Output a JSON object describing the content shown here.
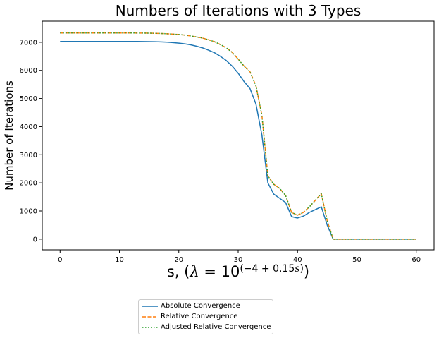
{
  "chart_data": {
    "type": "line",
    "title": "Numbers of Iterations with 3 Types",
    "xlabel": "s, (λ = 10^(−4 + 0.15s))",
    "xlabel_parts": {
      "prefix": "s, (",
      "lambda": "λ",
      "eq": " = 10",
      "exp": "(−4 + 0.15",
      "exp_s": "s",
      "exp_close": ")",
      "suffix": ")"
    },
    "ylabel": "Number of Iterations",
    "xlim": [
      -3,
      63
    ],
    "ylim": [
      -380,
      7750
    ],
    "xticks": [
      0,
      10,
      20,
      30,
      40,
      50,
      60
    ],
    "yticks": [
      0,
      1000,
      2000,
      3000,
      4000,
      5000,
      6000,
      7000
    ],
    "grid": false,
    "legend_placement": "below",
    "x": [
      0,
      1,
      2,
      3,
      4,
      5,
      6,
      7,
      8,
      9,
      10,
      11,
      12,
      13,
      14,
      15,
      16,
      17,
      18,
      19,
      20,
      21,
      22,
      23,
      24,
      25,
      26,
      27,
      28,
      29,
      30,
      31,
      32,
      33,
      34,
      35,
      36,
      37,
      38,
      39,
      40,
      41,
      42,
      43,
      44,
      45,
      46,
      47,
      48,
      49,
      50,
      51,
      52,
      53,
      54,
      55,
      56,
      57,
      58,
      59,
      60
    ],
    "series": [
      {
        "name": "Absolute Convergence",
        "color": "#1f77b4",
        "style": "solid",
        "values": [
          7030,
          7030,
          7030,
          7030,
          7030,
          7030,
          7030,
          7030,
          7030,
          7030,
          7030,
          7030,
          7029,
          7028,
          7026,
          7023,
          7018,
          7012,
          7002,
          6988,
          6970,
          6945,
          6910,
          6860,
          6800,
          6720,
          6630,
          6500,
          6350,
          6150,
          5900,
          5600,
          5350,
          4800,
          3700,
          2000,
          1600,
          1450,
          1300,
          800,
          750,
          820,
          950,
          1050,
          1150,
          500,
          0,
          0,
          0,
          0,
          0,
          0,
          0,
          0,
          0,
          0,
          0,
          0,
          0,
          0,
          0
        ]
      },
      {
        "name": "Relative Convergence",
        "color": "#ff7f0e",
        "style": "dashed",
        "values": [
          7330,
          7330,
          7330,
          7330,
          7330,
          7330,
          7330,
          7330,
          7330,
          7330,
          7330,
          7330,
          7329,
          7328,
          7326,
          7323,
          7318,
          7312,
          7302,
          7290,
          7275,
          7255,
          7225,
          7190,
          7150,
          7090,
          7020,
          6920,
          6800,
          6640,
          6400,
          6150,
          5950,
          5450,
          4400,
          2250,
          1950,
          1800,
          1550,
          950,
          850,
          950,
          1150,
          1380,
          1620,
          650,
          0,
          0,
          0,
          0,
          0,
          0,
          0,
          0,
          0,
          0,
          0,
          0,
          0,
          0,
          0
        ]
      },
      {
        "name": "Adjusted Relative Convergence",
        "color": "#2ca02c",
        "style": "dotted",
        "values": [
          7330,
          7330,
          7330,
          7330,
          7330,
          7330,
          7330,
          7330,
          7330,
          7330,
          7330,
          7330,
          7329,
          7328,
          7326,
          7323,
          7318,
          7312,
          7302,
          7290,
          7275,
          7255,
          7225,
          7190,
          7150,
          7090,
          7020,
          6920,
          6800,
          6640,
          6400,
          6150,
          5950,
          5450,
          4400,
          2250,
          1950,
          1800,
          1550,
          950,
          850,
          950,
          1150,
          1380,
          1620,
          650,
          0,
          0,
          0,
          0,
          0,
          0,
          0,
          0,
          0,
          0,
          0,
          0,
          0,
          0,
          0
        ]
      }
    ]
  }
}
